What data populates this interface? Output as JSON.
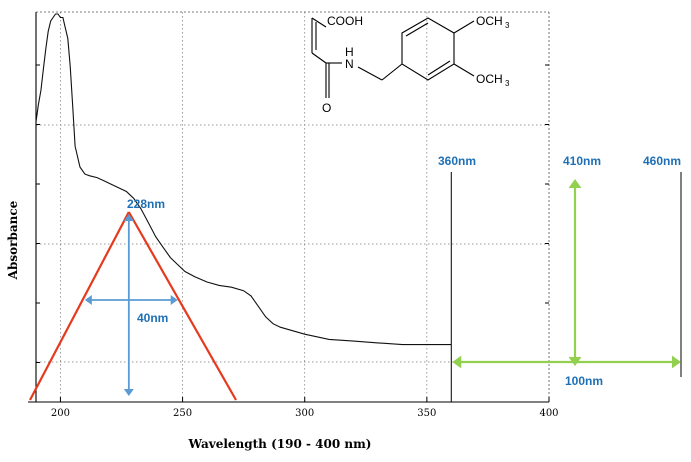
{
  "chart_data": {
    "type": "line",
    "xlabel": "Wavelength (190 - 400 nm)",
    "ylabel": "Absorbance",
    "xlim": [
      190,
      400
    ],
    "ylim": [
      0,
      1
    ],
    "x_ticks": [
      200,
      250,
      300,
      350,
      400
    ],
    "y_tick_count": 6,
    "grid": true,
    "grid_style": "dotted",
    "series": [
      {
        "x": [
          190,
          191,
          192,
          193,
          194,
          195,
          196,
          197,
          198,
          199,
          200,
          201,
          202,
          203,
          204,
          205,
          206,
          208,
          210,
          212,
          215,
          218,
          221,
          224,
          227,
          230,
          233,
          236,
          239,
          242,
          245,
          248,
          251,
          255,
          260,
          265,
          270,
          275,
          278,
          281,
          284,
          287,
          290,
          295,
          300,
          310,
          320,
          330,
          340,
          350,
          360
        ],
        "y": [
          0.69,
          0.74,
          0.78,
          0.84,
          0.9,
          0.95,
          0.98,
          0.99,
          1.0,
          1.0,
          0.99,
          0.99,
          0.96,
          0.93,
          0.85,
          0.74,
          0.62,
          0.56,
          0.54,
          0.535,
          0.53,
          0.52,
          0.51,
          0.5,
          0.49,
          0.47,
          0.44,
          0.4,
          0.36,
          0.33,
          0.3,
          0.28,
          0.26,
          0.245,
          0.23,
          0.22,
          0.215,
          0.205,
          0.19,
          0.16,
          0.13,
          0.11,
          0.1,
          0.09,
          0.08,
          0.065,
          0.06,
          0.055,
          0.05,
          0.05,
          0.05
        ]
      }
    ],
    "annotations": {
      "peak_label": "228nm",
      "width_label": "40nm",
      "cutoff_label": "360nm",
      "shifted_label": "410nm",
      "upper_label": "460nm",
      "range_label": "100nm",
      "peak_nm": 228,
      "width_left_nm": 210,
      "width_right_nm": 248,
      "cutoff_nm": 360,
      "colors": {
        "red": "#e53a1e",
        "blue": "#5b9bd5",
        "green": "#92d050",
        "label_blue": "#1f6fb5"
      }
    },
    "structure": {
      "labels": {
        "cooh": "COOH",
        "nh": "N",
        "h": "H",
        "o": "O",
        "ome1": "OCH",
        "ome2": "OCH",
        "sub": "3"
      }
    }
  }
}
